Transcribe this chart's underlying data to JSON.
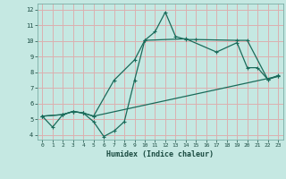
{
  "xlabel": "Humidex (Indice chaleur)",
  "background_color": "#c5e8e2",
  "grid_color": "#dbb0b0",
  "line_color": "#1a6b5a",
  "plot_bg": "#c5e8e2",
  "xlim": [
    -0.5,
    23.5
  ],
  "ylim": [
    3.7,
    12.4
  ],
  "xticks": [
    0,
    1,
    2,
    3,
    4,
    5,
    6,
    7,
    8,
    9,
    10,
    11,
    12,
    13,
    14,
    15,
    16,
    17,
    18,
    19,
    20,
    21,
    22,
    23
  ],
  "yticks": [
    4,
    5,
    6,
    7,
    8,
    9,
    10,
    11,
    12
  ],
  "line1_x": [
    0,
    1,
    2,
    3,
    4,
    5,
    6,
    7,
    8,
    9,
    10,
    11,
    12,
    13,
    14,
    15,
    19,
    20,
    22,
    23
  ],
  "line1_y": [
    5.2,
    4.5,
    5.3,
    5.5,
    5.4,
    4.85,
    3.9,
    4.25,
    4.85,
    7.5,
    10.05,
    10.6,
    11.85,
    10.3,
    10.1,
    10.1,
    10.05,
    10.05,
    7.55,
    7.8
  ],
  "line2_x": [
    0,
    2,
    3,
    4,
    5,
    7,
    9,
    10,
    14,
    17,
    19,
    20,
    21,
    22,
    23
  ],
  "line2_y": [
    5.2,
    5.3,
    5.5,
    5.4,
    5.2,
    7.5,
    8.8,
    10.05,
    10.15,
    9.3,
    9.9,
    8.3,
    8.3,
    7.55,
    7.75
  ],
  "line3_x": [
    0,
    2,
    3,
    4,
    5,
    23
  ],
  "line3_y": [
    5.2,
    5.3,
    5.5,
    5.4,
    5.2,
    7.75
  ]
}
